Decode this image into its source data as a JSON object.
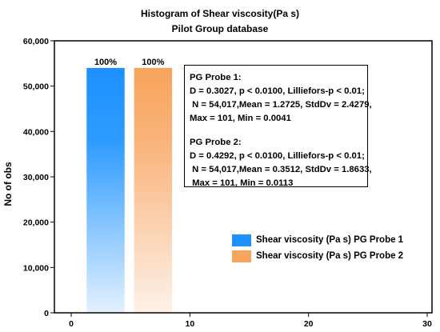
{
  "chart_data": {
    "type": "bar",
    "title": "Histogram of Shear viscosity(Pa s)",
    "subtitle": "Pilot Group database",
    "xlabel": "",
    "ylabel": "No of obs",
    "xlim": [
      0,
      30
    ],
    "ylim": [
      0,
      60000
    ],
    "x_ticks": [
      "0",
      "10",
      "20",
      "30"
    ],
    "y_ticks": [
      "0",
      "10,000",
      "20,000",
      "30,000",
      "40,000",
      "50,000",
      "60,000"
    ],
    "series": [
      {
        "name": "Shear viscosity (Pa s) PG Probe 1",
        "x_start": 1.3,
        "x_end": 4.5,
        "value": 54017,
        "label": "100%",
        "color": "#1e90ff"
      },
      {
        "name": "Shear viscosity (Pa s) PG Probe 2",
        "x_start": 5.3,
        "x_end": 8.5,
        "value": 54017,
        "label": "100%",
        "color": "#f7a45c"
      }
    ],
    "annotation": [
      "PG Probe 1:",
      "D = 0.3027, p < 0.0100, Lilliefors-p < 0.01;",
      " N = 54,017,Mean = 1.2725, StdDv = 2.4279,",
      "Max = 101, Min = 0.0041",
      "",
      "PG Probe 2:",
      "D = 0.4292, p < 0.0100, Lilliefors-p < 0.01;",
      " N = 54,017,Mean = 0.3512, StdDv = 1.8633,",
      " Max = 101, Min = 0.0113"
    ],
    "legend_position": "bottom-right",
    "grid": false
  }
}
